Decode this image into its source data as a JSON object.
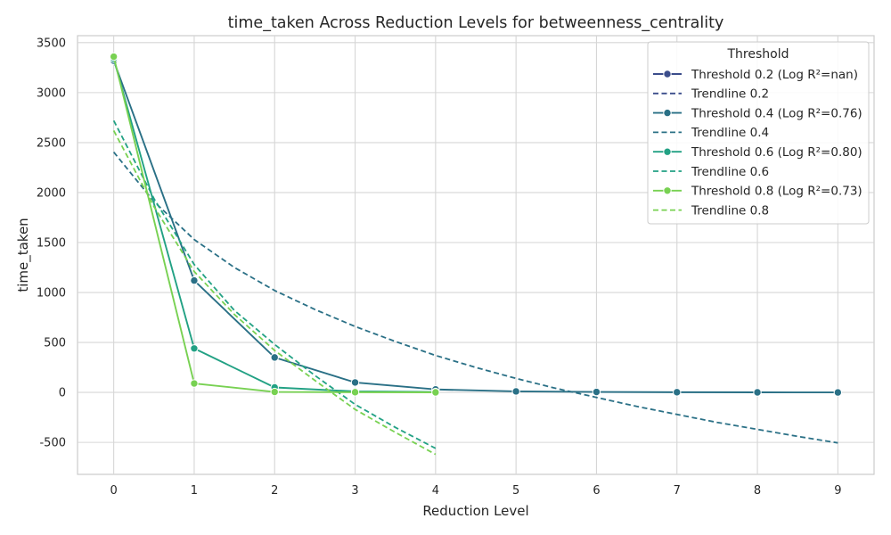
{
  "chart_data": {
    "type": "line",
    "title": "time_taken Across Reduction Levels for betweenness_centrality",
    "xlabel": "Reduction Level",
    "ylabel": "time_taken",
    "xlim": [
      -0.45,
      9.45
    ],
    "ylim": [
      -820,
      3570
    ],
    "x_ticks": [
      0,
      1,
      2,
      3,
      4,
      5,
      6,
      7,
      8,
      9
    ],
    "y_ticks": [
      -500,
      0,
      500,
      1000,
      1500,
      2000,
      2500,
      3000,
      3500
    ],
    "grid": true,
    "legend": {
      "title": "Threshold",
      "placement": "top-right"
    },
    "series": [
      {
        "name": "Threshold 0.2 (Log R²=nan)",
        "kind": "data",
        "color": "#3b4d8b",
        "x": [],
        "y": []
      },
      {
        "name": "Trendline 0.2",
        "kind": "trend",
        "color": "#3b4d8b",
        "x": [],
        "y": []
      },
      {
        "name": "Threshold 0.4 (Log R²=0.76)",
        "kind": "data",
        "color": "#2a7086",
        "x": [
          0,
          1,
          2,
          3,
          4,
          5,
          6,
          7,
          8,
          9
        ],
        "y": [
          3320,
          1120,
          350,
          100,
          30,
          10,
          5,
          2,
          1,
          0
        ]
      },
      {
        "name": "Trendline 0.4",
        "kind": "trend",
        "color": "#2a7086",
        "x": [
          0,
          0.5,
          1,
          1.5,
          2,
          2.5,
          3,
          3.5,
          4,
          4.5,
          5,
          5.5,
          6,
          6.5,
          7,
          7.5,
          8,
          8.5,
          9
        ],
        "y": [
          2405,
          1910,
          1530,
          1250,
          1020,
          830,
          660,
          510,
          370,
          250,
          140,
          40,
          -50,
          -140,
          -220,
          -300,
          -370,
          -440,
          -505
        ]
      },
      {
        "name": "Threshold 0.6 (Log R²=0.80)",
        "kind": "data",
        "color": "#22a184",
        "x": [
          0,
          1,
          2,
          3,
          4
        ],
        "y": [
          3340,
          440,
          50,
          10,
          5
        ]
      },
      {
        "name": "Trendline 0.6",
        "kind": "trend",
        "color": "#22a184",
        "x": [
          0,
          0.5,
          1,
          1.5,
          2,
          2.5,
          3,
          3.5,
          4
        ],
        "y": [
          2720,
          1940,
          1280,
          820,
          480,
          170,
          -120,
          -350,
          -560
        ]
      },
      {
        "name": "Threshold 0.8 (Log R²=0.73)",
        "kind": "data",
        "color": "#78d152",
        "x": [
          0,
          1,
          2,
          3,
          4
        ],
        "y": [
          3360,
          90,
          5,
          2,
          1
        ]
      },
      {
        "name": "Trendline 0.8",
        "kind": "trend",
        "color": "#78d152",
        "x": [
          0,
          0.5,
          1,
          1.5,
          2,
          2.5,
          3,
          3.5,
          4
        ],
        "y": [
          2620,
          1860,
          1210,
          780,
          420,
          120,
          -170,
          -400,
          -620
        ]
      }
    ]
  }
}
